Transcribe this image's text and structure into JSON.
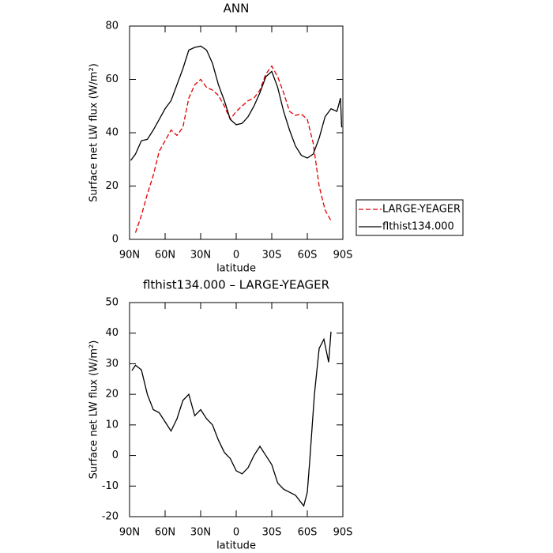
{
  "chart_data": [
    {
      "type": "line",
      "title": "ANN",
      "x_label": "latitude",
      "y_label": "Surface net LW flux (W/m²)",
      "x": [
        89,
        85,
        80,
        75,
        70,
        65,
        60,
        55,
        50,
        45,
        40,
        35,
        30,
        25,
        20,
        15,
        10,
        5,
        0,
        -5,
        -10,
        -15,
        -20,
        -25,
        -30,
        -35,
        -40,
        -45,
        -50,
        -55,
        -60,
        -65,
        -70,
        -75,
        -80,
        -85,
        -88,
        -89
      ],
      "series": [
        {
          "name": "LARGE-YEAGER",
          "color": "#e00000",
          "style": "dashed",
          "values": [
            null,
            2.5,
            9,
            17,
            24,
            33,
            37,
            41,
            39,
            42,
            53,
            58,
            60,
            57,
            56,
            54,
            50,
            45,
            48,
            50,
            52,
            53,
            56,
            62,
            65,
            61,
            55,
            48,
            46.5,
            47,
            45,
            36,
            20,
            11,
            7,
            null,
            null,
            null
          ]
        },
        {
          "name": "flthist134.000",
          "color": "#000000",
          "style": "solid",
          "values": [
            29.6,
            32,
            37,
            37.5,
            41,
            45,
            49,
            52,
            58,
            64,
            71,
            72,
            72.5,
            71,
            66,
            58,
            52,
            45,
            43,
            43.5,
            46,
            50,
            55,
            61,
            63,
            57,
            48,
            41,
            35,
            31.5,
            30.5,
            32,
            38,
            46,
            49,
            48,
            53,
            42
          ]
        }
      ],
      "xlim": [
        90,
        -90
      ],
      "xticks": [
        {
          "value": 90,
          "label": "90N"
        },
        {
          "value": 60,
          "label": "60N"
        },
        {
          "value": 30,
          "label": "30N"
        },
        0,
        {
          "value": -30,
          "label": "30S"
        },
        {
          "value": -60,
          "label": "60S"
        },
        {
          "value": -90,
          "label": "90S"
        }
      ],
      "ylim": [
        0,
        80
      ],
      "yticks": [
        0,
        20,
        40,
        60,
        80
      ],
      "grid": false,
      "legend": "right"
    },
    {
      "type": "line",
      "title": "flthist134.000 – LARGE-YEAGER",
      "x_label": "latitude",
      "y_label": "Surface net LW flux (W/m²)",
      "x": [
        88,
        85,
        80,
        75,
        70,
        65,
        60,
        55,
        50,
        45,
        40,
        35,
        30,
        25,
        20,
        15,
        10,
        5,
        0,
        -5,
        -10,
        -15,
        -20,
        -25,
        -30,
        -35,
        -40,
        -45,
        -50,
        -55,
        -57,
        -60,
        -62,
        -66,
        -70,
        -74,
        -78,
        -80
      ],
      "series": [
        {
          "name": "flthist134.000 – LARGE-YEAGER",
          "color": "#000000",
          "style": "solid",
          "values": [
            27.8,
            29.5,
            28,
            20,
            15,
            14,
            11,
            8,
            12,
            18,
            20,
            13,
            15,
            12,
            10,
            5,
            1,
            -1,
            -5,
            -6,
            -4,
            0,
            3,
            0,
            -3,
            -9,
            -11,
            -12,
            -13,
            -15.5,
            -16.5,
            -12,
            -2,
            20,
            35,
            38,
            30.5,
            40.5
          ]
        }
      ],
      "xlim": [
        90,
        -90
      ],
      "xticks": [
        {
          "value": 90,
          "label": "90N"
        },
        {
          "value": 60,
          "label": "60N"
        },
        {
          "value": 30,
          "label": "30N"
        },
        0,
        {
          "value": -30,
          "label": "30S"
        },
        {
          "value": -60,
          "label": "60S"
        },
        {
          "value": -90,
          "label": "90S"
        }
      ],
      "ylim": [
        -20,
        50
      ],
      "yticks": [
        -20,
        -10,
        0,
        10,
        20,
        30,
        40,
        50
      ],
      "grid": false
    }
  ]
}
